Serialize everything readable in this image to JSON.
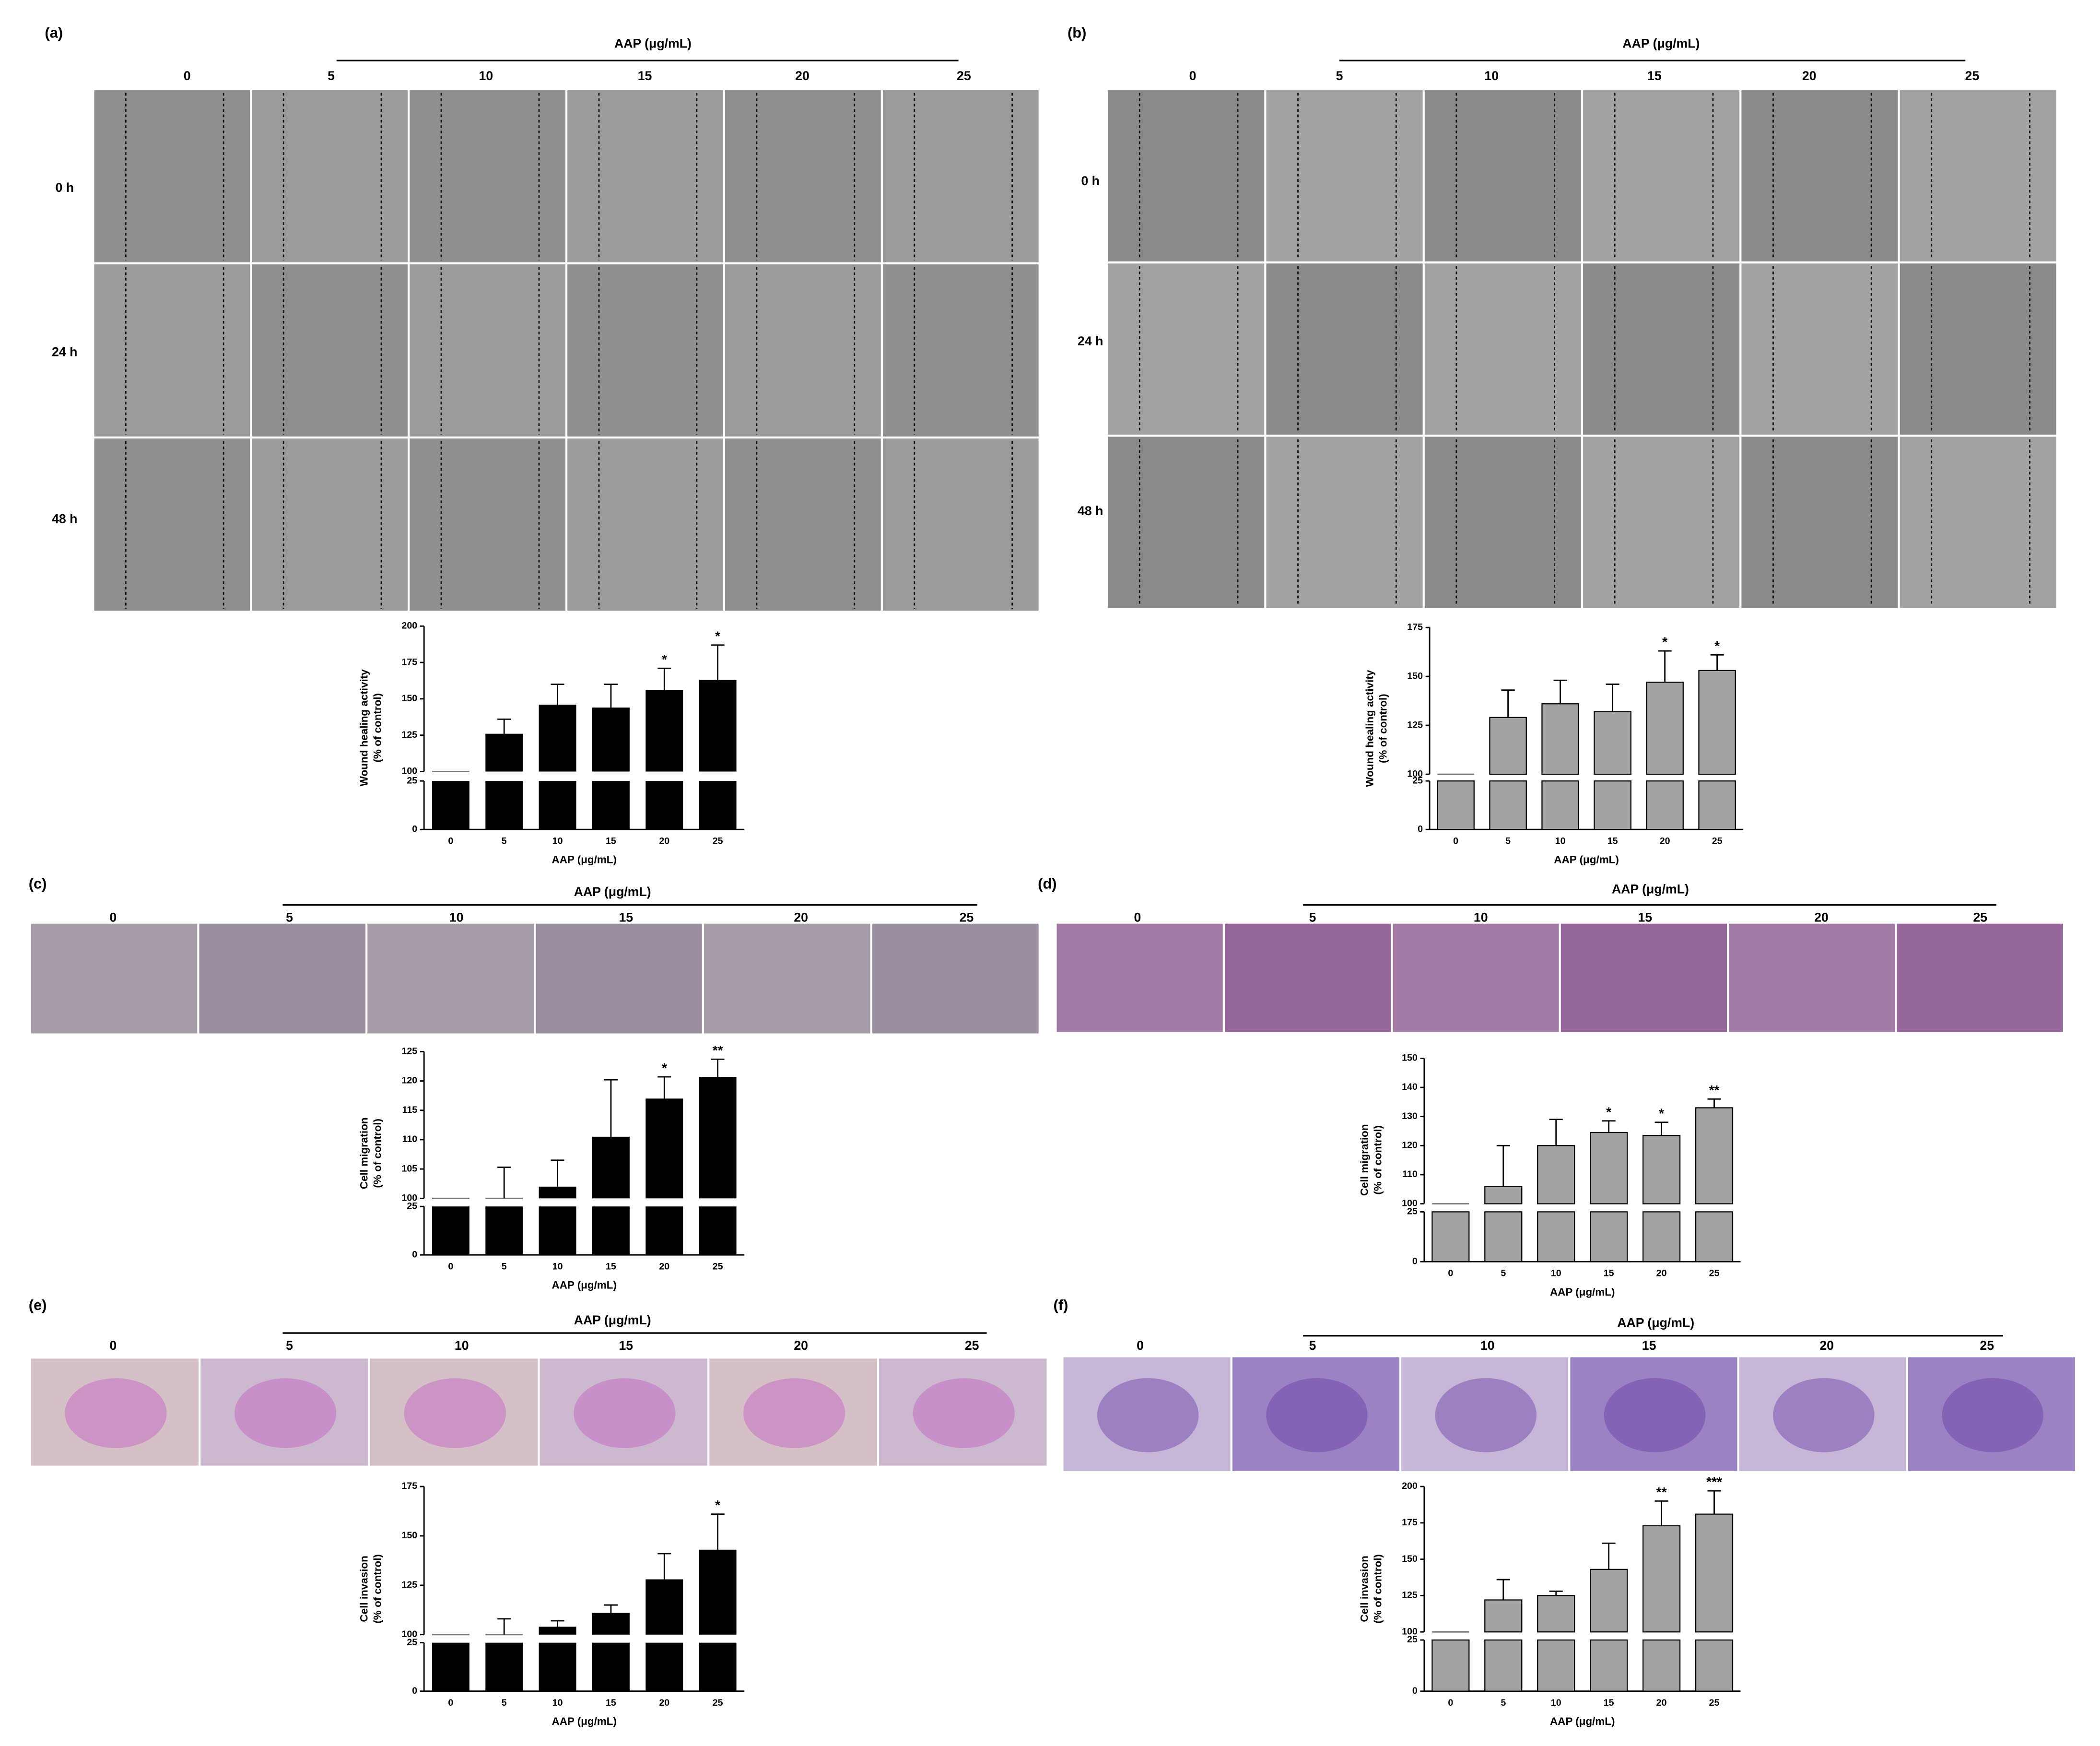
{
  "panels": [
    {
      "label": "(a)",
      "header": "AAP (μg/mL)",
      "columns": [
        "0",
        "5",
        "10",
        "15",
        "20",
        "25"
      ],
      "rows": [
        "0 h",
        "24 h",
        "48 h"
      ]
    },
    {
      "label": "(b)",
      "header": "AAP (μg/mL)",
      "columns": [
        "0",
        "5",
        "10",
        "15",
        "20",
        "25"
      ],
      "rows": [
        "0 h",
        "24 h",
        "48 h"
      ]
    },
    {
      "label": "(c)",
      "header": "AAP (μg/mL)",
      "columns": [
        "0",
        "5",
        "10",
        "15",
        "20",
        "25"
      ]
    },
    {
      "label": "(d)",
      "header": "AAP (μg/mL)",
      "columns": [
        "0",
        "5",
        "10",
        "15",
        "20",
        "25"
      ]
    },
    {
      "label": "(e)",
      "header": "AAP (μg/mL)",
      "columns": [
        "0",
        "5",
        "10",
        "15",
        "20",
        "25"
      ]
    },
    {
      "label": "(f)",
      "header": "AAP (μg/mL)",
      "columns": [
        "0",
        "5",
        "10",
        "15",
        "20",
        "25"
      ]
    }
  ],
  "chart_data": [
    {
      "type": "bar",
      "ylabel": [
        "Wound healing activity",
        "(% of control)"
      ],
      "xlabel": "AAP (μg/mL)",
      "categories": [
        "0",
        "5",
        "10",
        "15",
        "20",
        "25"
      ],
      "values": [
        100,
        126,
        146,
        144,
        156,
        163
      ],
      "errors": [
        0,
        10,
        14,
        16,
        15,
        24
      ],
      "significance": [
        null,
        null,
        null,
        null,
        "*",
        "*"
      ],
      "color": "#000000",
      "ylim": [
        0,
        200
      ],
      "ybreak": [
        25,
        100
      ],
      "yticks": [
        0,
        25,
        100,
        125,
        150,
        175,
        200
      ]
    },
    {
      "type": "bar",
      "ylabel": [
        "Wound healing activity",
        "(% of control)"
      ],
      "xlabel": "AAP (μg/mL)",
      "categories": [
        "0",
        "5",
        "10",
        "15",
        "20",
        "25"
      ],
      "values": [
        100,
        129,
        136,
        132,
        147,
        153
      ],
      "errors": [
        0,
        14,
        12,
        14,
        16,
        8
      ],
      "significance": [
        null,
        null,
        null,
        null,
        "*",
        "*"
      ],
      "color": "#a3a3a3",
      "ylim": [
        0,
        175
      ],
      "ybreak": [
        25,
        100
      ],
      "yticks": [
        0,
        25,
        100,
        125,
        150,
        175
      ]
    },
    {
      "type": "bar",
      "ylabel": [
        "Cell migration",
        "(% of control)"
      ],
      "xlabel": "AAP (μg/mL)",
      "categories": [
        "0",
        "5",
        "10",
        "15",
        "20",
        "25"
      ],
      "values": [
        100,
        100,
        102,
        110.5,
        117,
        120.7
      ],
      "errors": [
        0,
        5.3,
        4.5,
        9.7,
        3.7,
        3
      ],
      "significance": [
        null,
        null,
        null,
        null,
        "*",
        "**"
      ],
      "color": "#000000",
      "ylim": [
        0,
        125
      ],
      "ybreak": [
        25,
        100
      ],
      "yticks": [
        0,
        25,
        100,
        105,
        110,
        115,
        120,
        125
      ]
    },
    {
      "type": "bar",
      "ylabel": [
        "Cell migration",
        "(% of control)"
      ],
      "xlabel": "AAP (μg/mL)",
      "categories": [
        "0",
        "5",
        "10",
        "15",
        "20",
        "25"
      ],
      "values": [
        100,
        106,
        120,
        124.5,
        123.5,
        133
      ],
      "errors": [
        0,
        14,
        9,
        4,
        4.5,
        3
      ],
      "significance": [
        null,
        null,
        null,
        "*",
        "*",
        "**"
      ],
      "color": "#a3a3a3",
      "ylim": [
        0,
        150
      ],
      "ybreak": [
        25,
        100
      ],
      "yticks": [
        0,
        25,
        100,
        110,
        120,
        130,
        140,
        150
      ]
    },
    {
      "type": "bar",
      "ylabel": [
        "Cell invasion",
        "(% of control)"
      ],
      "xlabel": "AAP (μg/mL)",
      "categories": [
        "0",
        "5",
        "10",
        "15",
        "20",
        "25"
      ],
      "values": [
        100,
        100,
        104,
        111,
        128,
        143
      ],
      "errors": [
        0,
        8,
        3,
        4,
        13,
        18
      ],
      "significance": [
        null,
        null,
        null,
        null,
        null,
        "*"
      ],
      "color": "#000000",
      "ylim": [
        0,
        175
      ],
      "ybreak": [
        25,
        100
      ],
      "yticks": [
        0,
        25,
        100,
        125,
        150,
        175
      ]
    },
    {
      "type": "bar",
      "ylabel": [
        "Cell invasion",
        "(% of control)"
      ],
      "xlabel": "AAP (μg/mL)",
      "categories": [
        "0",
        "5",
        "10",
        "15",
        "20",
        "25"
      ],
      "values": [
        100,
        122,
        125,
        143,
        173,
        181
      ],
      "errors": [
        0,
        14,
        3,
        18,
        17,
        16
      ],
      "significance": [
        null,
        null,
        null,
        null,
        "**",
        "***"
      ],
      "color": "#a3a3a3",
      "ylim": [
        0,
        200
      ],
      "ybreak": [
        25,
        100
      ],
      "yticks": [
        0,
        25,
        100,
        125,
        150,
        175,
        200
      ]
    }
  ]
}
